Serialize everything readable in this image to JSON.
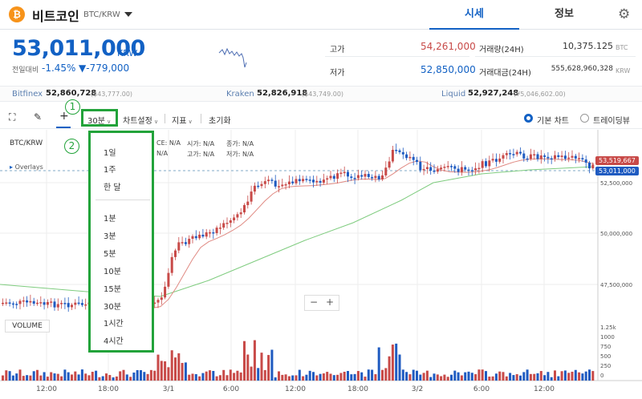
{
  "header": {
    "coin_icon": "bitcoin-icon",
    "coin_name": "비트코인",
    "pair": "BTC/KRW",
    "tabs": [
      {
        "label": "시세",
        "active": true
      },
      {
        "label": "정보",
        "active": false
      }
    ],
    "settings_icon": "gear-icon"
  },
  "price": {
    "current": "53,011,000",
    "unit": "KRW",
    "change_label": "전일대비",
    "change_pct": "-1.45%",
    "change_abs": "▼-779,000"
  },
  "stats": {
    "high_label": "고가",
    "high_value": "54,261,000",
    "low_label": "저가",
    "low_value": "52,850,000",
    "volume_label": "거래량(24H)",
    "volume_value": "10,375.125",
    "volume_unit": "BTC",
    "amount_label": "거래대금(24H)",
    "amount_value": "555,628,960,328",
    "amount_unit": "KRW"
  },
  "exchanges": [
    {
      "name": "Bitfinex",
      "value": "52,860,728",
      "sub": "($43,777.00)"
    },
    {
      "name": "Kraken",
      "value": "52,826,918",
      "sub": "($43,749.00)"
    },
    {
      "name": "Liquid",
      "value": "52,927,248",
      "sub": "(¥5,046,602.00)"
    }
  ],
  "toolbar": {
    "interval": "30분",
    "chart_settings": "차트설정",
    "indicators": "지표",
    "reset": "초기화",
    "basic_chart": "기본 차트",
    "tradingview": "트레이딩뷰"
  },
  "annotations": {
    "one": "1",
    "two": "2"
  },
  "legend": {
    "pair": "BTC/KRW",
    "fields": [
      "CE: N/A",
      "시가: N/A",
      "종가: N/A",
      "N/A",
      "고가: N/A",
      "저가: N/A"
    ],
    "overlays": "Overlays"
  },
  "interval_menu": {
    "group1": [
      "1일",
      "1주",
      "한 달"
    ],
    "group2": [
      "1분",
      "3분",
      "5분",
      "10분",
      "15분",
      "30분",
      "1시간",
      "4시간"
    ]
  },
  "chart": {
    "price_axis": [
      "52,500,000",
      "50,000,000",
      "47,500,000"
    ],
    "volume_axis": [
      "1.25k",
      "1000",
      "750",
      "500",
      "250",
      "0"
    ],
    "time_axis": [
      "12:00",
      "18:00",
      "3/1",
      "6:00",
      "12:00",
      "18:00",
      "3/2",
      "6:00",
      "12:00"
    ],
    "tag_red": "53,519,667",
    "tag_blue": "53,011,000",
    "volume_label": "VOLUME",
    "zoom_minus": "−",
    "zoom_plus": "+",
    "colors": {
      "up": "#c84a48",
      "down": "#1f5bc1",
      "ma_red": "#e08a83",
      "ma_green": "#7fcc7f"
    }
  }
}
